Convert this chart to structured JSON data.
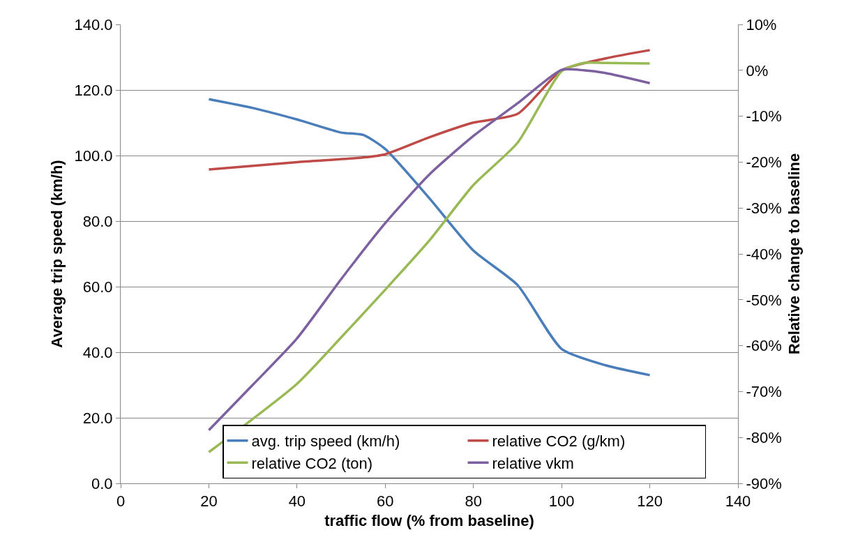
{
  "chart_data": {
    "type": "line",
    "xlabel": "traffic flow (% from baseline)",
    "ylabel": "Average trip speed (km/h)",
    "y2label": "Relative change to baseline",
    "xlim": [
      0,
      140
    ],
    "xticks": [
      0,
      20,
      40,
      60,
      80,
      100,
      120,
      140
    ],
    "ylim": [
      0,
      140
    ],
    "yticks": [
      {
        "value": 0,
        "label": "0.0"
      },
      {
        "value": 20,
        "label": "20.0"
      },
      {
        "value": 40,
        "label": "40.0"
      },
      {
        "value": 60,
        "label": "60.0"
      },
      {
        "value": 80,
        "label": "80.0"
      },
      {
        "value": 100,
        "label": "100.0"
      },
      {
        "value": 120,
        "label": "120.0"
      },
      {
        "value": 140,
        "label": "140.0"
      }
    ],
    "y2lim": [
      -90,
      10
    ],
    "y2ticks": [
      {
        "value": -90,
        "label": "-90%"
      },
      {
        "value": -80,
        "label": "-80%"
      },
      {
        "value": -70,
        "label": "-70%"
      },
      {
        "value": -60,
        "label": "-60%"
      },
      {
        "value": -50,
        "label": "-50%"
      },
      {
        "value": -40,
        "label": "-40%"
      },
      {
        "value": -30,
        "label": "-30%"
      },
      {
        "value": -20,
        "label": "-20%"
      },
      {
        "value": -10,
        "label": "-10%"
      },
      {
        "value": 0,
        "label": "0%"
      },
      {
        "value": 10,
        "label": "10%"
      }
    ],
    "grid": "y",
    "legend": "bottom",
    "marker": "none",
    "line_style": "solid",
    "series": [
      {
        "name": "avg. trip speed (km/h)",
        "color": "#4a7ebb",
        "x": [
          20,
          30,
          40,
          50,
          55,
          60,
          70,
          80,
          90,
          100,
          110,
          120
        ],
        "values": [
          117.2,
          114.5,
          111,
          107,
          106.3,
          102,
          87,
          71,
          60.5,
          41,
          36,
          33
        ]
      },
      {
        "name": "relative CO2 (g/km)",
        "color": "#be4b48",
        "axis": "y2",
        "x": [
          20,
          40,
          55,
          60,
          70,
          80,
          90,
          100,
          110,
          120
        ],
        "values": [
          -21.6,
          -20,
          -19,
          -18.3,
          -14.6,
          -11.4,
          -9.5,
          0,
          2.6,
          4.4
        ]
      },
      {
        "name": "relative CO2 (ton)",
        "color": "#98b954",
        "axis": "y2",
        "x": [
          20,
          40,
          50,
          60,
          70,
          80,
          90,
          100,
          105,
          110,
          120
        ],
        "values": [
          -83.2,
          -68.3,
          -58.2,
          -47.8,
          -37.1,
          -25,
          -15.8,
          -0.2,
          1.6,
          1.6,
          1.5
        ]
      },
      {
        "name": "relative vkm",
        "color": "#7d60a0",
        "axis": "y2",
        "x": [
          20,
          30,
          40,
          50,
          60,
          70,
          80,
          90,
          100,
          105,
          110,
          120
        ],
        "values": [
          -78.4,
          -68.5,
          -58.4,
          -45.5,
          -33.3,
          -22.7,
          -14.3,
          -7.2,
          0.1,
          0,
          -0.6,
          -2.8
        ]
      }
    ]
  }
}
